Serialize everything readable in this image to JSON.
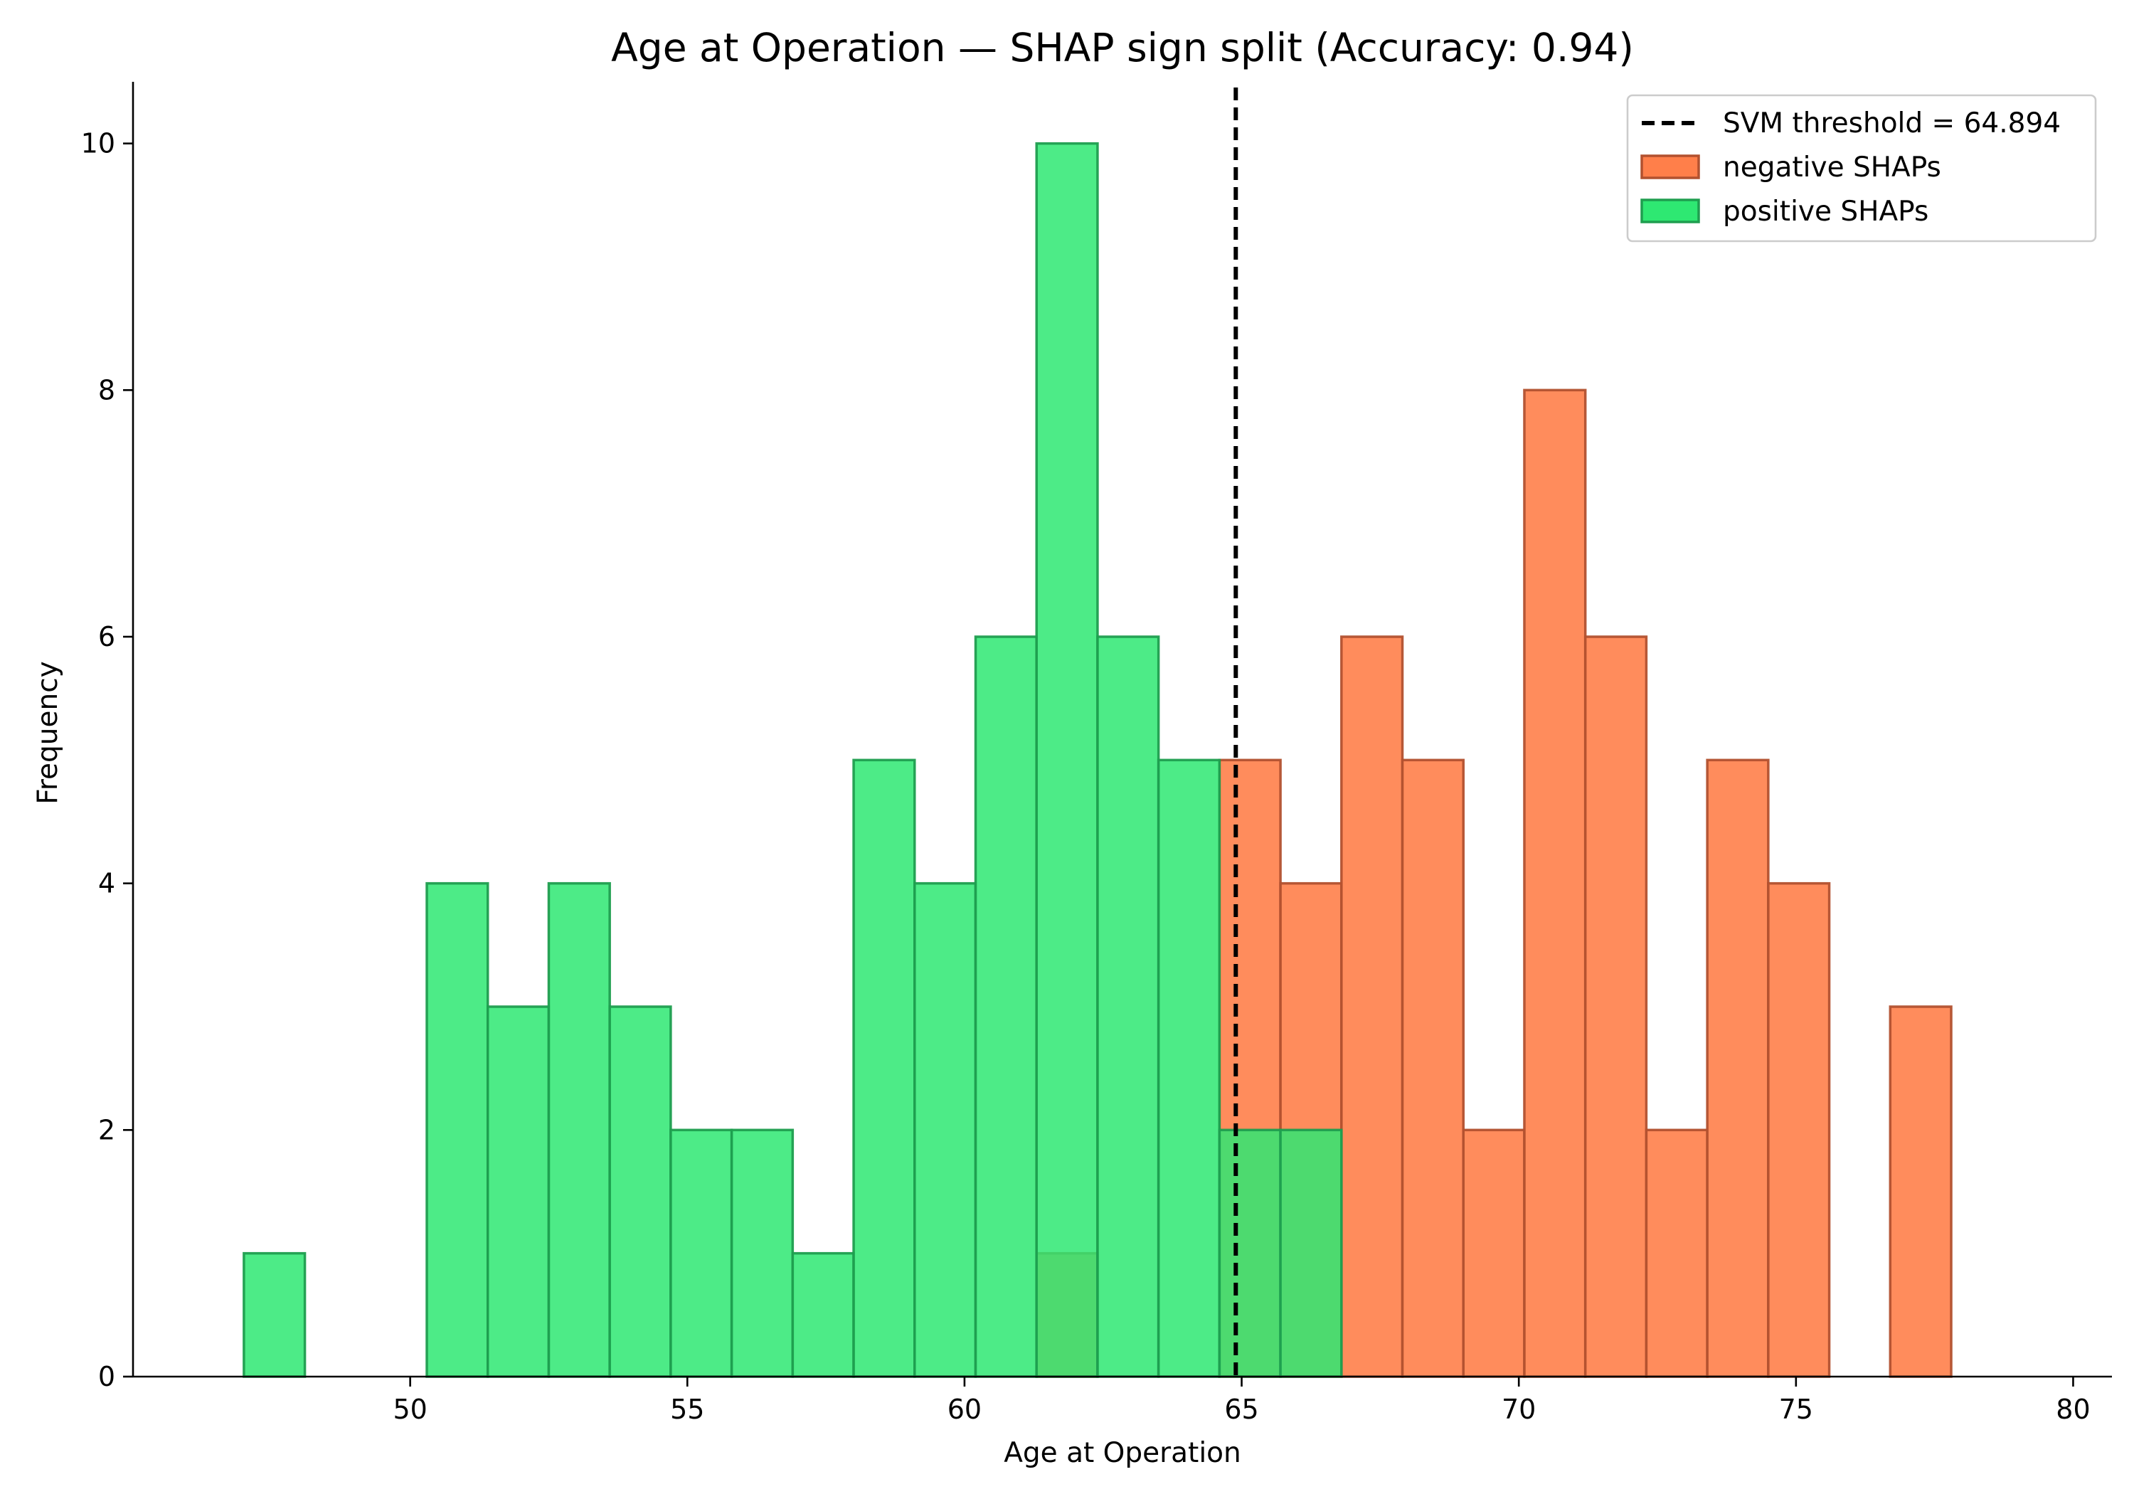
{
  "chart_data": {
    "type": "bar",
    "title": "Age at Operation — SHAP sign split (Accuracy: 0.94)",
    "xlabel": "Age at Operation",
    "ylabel": "Frequency",
    "xlim": [
      45.0,
      80.7
    ],
    "ylim": [
      0,
      10.5
    ],
    "xticks": [
      50,
      55,
      60,
      65,
      70,
      75,
      80
    ],
    "yticks": [
      0,
      2,
      4,
      6,
      8,
      10
    ],
    "bin_edges": [
      47.0,
      48.1,
      49.2,
      50.3,
      51.4,
      52.5,
      53.6,
      54.7,
      55.8,
      56.9,
      58.0,
      59.1,
      60.2,
      61.3,
      62.4,
      63.5,
      64.6,
      65.7,
      66.8,
      67.9,
      69.0,
      70.1,
      71.2,
      72.3,
      73.4,
      74.5,
      75.6,
      76.7,
      77.8,
      78.9
    ],
    "threshold": {
      "value": 64.894,
      "label": "SVM threshold = 64.894",
      "color": "#000000"
    },
    "series": [
      {
        "name": "negative SHAPs",
        "fill": "#ff7f4a",
        "edge": "#b2512f",
        "values": [
          0,
          0,
          0,
          0,
          0,
          0,
          0,
          0,
          0,
          0,
          0,
          0,
          0,
          1,
          0,
          0,
          5,
          4,
          6,
          5,
          2,
          8,
          6,
          2,
          5,
          4,
          0,
          3,
          0
        ]
      },
      {
        "name": "positive SHAPs",
        "fill": "#2ee872",
        "edge": "#1f9e4f",
        "values": [
          1,
          0,
          0,
          4,
          3,
          4,
          3,
          2,
          2,
          1,
          5,
          4,
          6,
          10,
          6,
          5,
          2,
          2,
          0,
          0,
          0,
          0,
          0,
          0,
          0,
          0,
          0,
          0,
          0
        ]
      }
    ],
    "legend": {
      "placement": "top-right"
    },
    "grid": false
  }
}
